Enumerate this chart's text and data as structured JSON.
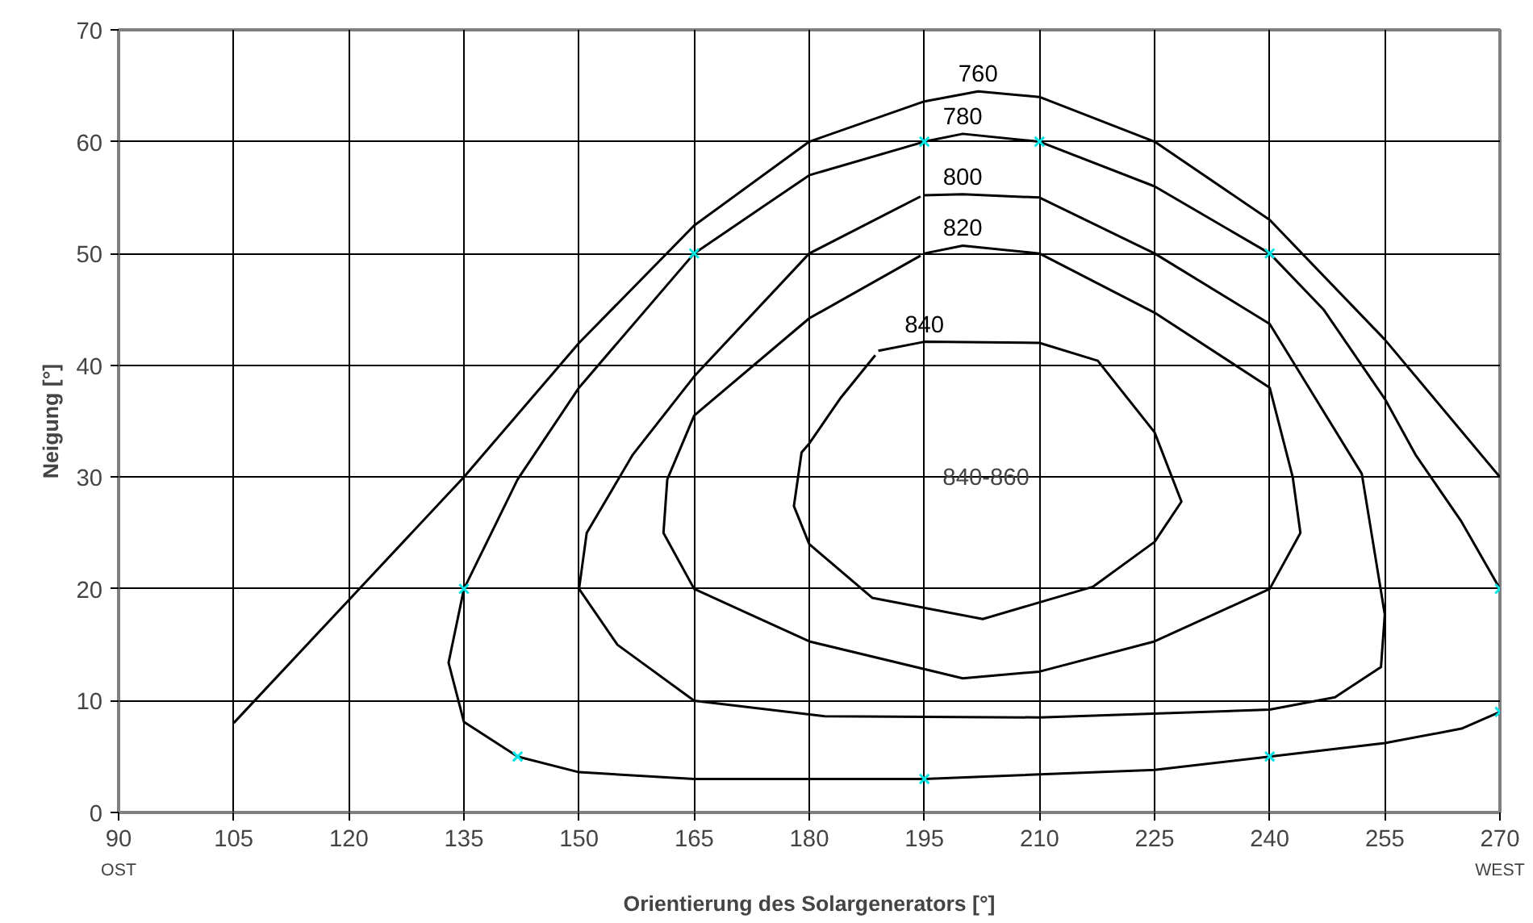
{
  "chart_data": {
    "type": "line",
    "xlabel": "Orientierung des Solargenerators [°]",
    "ylabel": "Neigung [°]",
    "xlim": [
      90,
      270
    ],
    "ylim": [
      0,
      70
    ],
    "xticks": [
      90,
      105,
      120,
      135,
      150,
      165,
      180,
      195,
      210,
      225,
      240,
      255,
      270
    ],
    "yticks": [
      0,
      10,
      20,
      30,
      40,
      50,
      60,
      70
    ],
    "grid": true,
    "marker": "none",
    "line_style": "solid",
    "annotations": [
      "OST",
      "WEST",
      "840-860"
    ],
    "series": [
      {
        "name": "760",
        "color": "#000000",
        "x": [
          105,
          120,
          135,
          150,
          165,
          180,
          195,
          202,
          210,
          225,
          240,
          255,
          270
        ],
        "values": [
          8,
          19,
          30,
          42,
          52.5,
          60,
          63.6,
          64.5,
          64,
          60,
          53,
          42.3,
          30
        ]
      },
      {
        "name": "780",
        "color": "#000000",
        "x": [
          270,
          265,
          259,
          255,
          247,
          240,
          225,
          210,
          200,
          195,
          180,
          165,
          150,
          142,
          135,
          133,
          135,
          142,
          150,
          165,
          195,
          225,
          240,
          255,
          265,
          270
        ],
        "values": [
          20,
          26,
          32,
          37,
          45,
          50,
          56,
          60,
          60.7,
          60,
          57,
          50,
          38,
          29.8,
          20,
          13.4,
          8.1,
          5,
          3.6,
          3,
          3,
          3.8,
          5,
          6.2,
          7.5,
          9
        ]
      },
      {
        "name": "800",
        "color": "#000000",
        "x": [
          195,
          200,
          210,
          225,
          240,
          252,
          255,
          254.5,
          248.5,
          240,
          210,
          182,
          165,
          155,
          150,
          151,
          157,
          165,
          180,
          194.5
        ],
        "values": [
          55.2,
          55.3,
          55,
          50,
          43.7,
          30.3,
          17.7,
          13,
          10.3,
          9.2,
          8.5,
          8.6,
          10,
          15,
          20,
          25,
          32,
          39,
          50,
          55.1
        ]
      },
      {
        "name": "820",
        "color": "#000000",
        "x": [
          195,
          200,
          210,
          225,
          240,
          243,
          244,
          240,
          225,
          210,
          200,
          180,
          165,
          161,
          161.5,
          165,
          180,
          194.5
        ],
        "values": [
          50,
          50.7,
          50,
          44.7,
          38,
          30,
          25,
          20,
          15.3,
          12.6,
          12,
          15.3,
          20,
          25,
          29.8,
          35.5,
          44.2,
          49.8
        ]
      },
      {
        "name": "840",
        "color": "#000000",
        "x": [
          189,
          195,
          210,
          217.6,
          225,
          228.5,
          225,
          217,
          202.6,
          188.2,
          180,
          178,
          179,
          180,
          184,
          188.6
        ],
        "values": [
          41.3,
          42.1,
          42,
          40.4,
          34,
          27.8,
          24.2,
          20.2,
          17.3,
          19.2,
          24,
          27.4,
          32.2,
          33,
          37,
          40.9
        ]
      },
      {
        "type": "scatter",
        "marker": "cross",
        "color": "#00e5e5",
        "x": [
          135,
          142,
          165,
          195,
          210,
          240,
          270,
          195,
          240,
          270
        ],
        "values": [
          20,
          5,
          50,
          60,
          60,
          50,
          20,
          3,
          5,
          9
        ]
      }
    ]
  }
}
